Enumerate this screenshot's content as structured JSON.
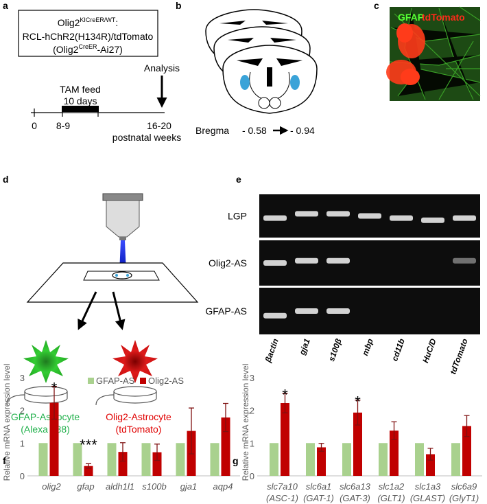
{
  "panels": {
    "a": {
      "label": "a",
      "genotype": {
        "base": "Olig2",
        "sup": "KICreER/WT",
        "tail": ":"
      },
      "line2": "RCL-hChR2(H134R)/tdTomato",
      "line3": {
        "base": "(Olig2",
        "sup": "CreER",
        "tail": "-Ai27)"
      },
      "tam": "TAM feed",
      "days": "10 days",
      "analysis": "Analysis",
      "ticks": [
        "0",
        "8-9",
        "16-20"
      ],
      "unit": "postnatal weeks"
    },
    "b": {
      "label": "b",
      "bregma": "Bregma",
      "from": "- 0.58",
      "to": "- 0.94"
    },
    "c": {
      "label": "c",
      "stain1": "GFAP",
      "stain2": "tdTomato"
    },
    "d": {
      "label": "d",
      "cells": [
        {
          "name": "GFAP-Astrocyte",
          "sub": "(Alexa 488)"
        },
        {
          "name": "Olig2-Astrocyte",
          "sub": "(tdTomato)"
        }
      ]
    },
    "e": {
      "label": "e",
      "rows": [
        "LGP",
        "Olig2-AS",
        "GFAP-AS"
      ],
      "lanes": [
        "βactin",
        "gja1",
        "s100β",
        "mbp",
        "cd11b",
        "HuC/D",
        "tdTomato"
      ]
    }
  },
  "chart_data": [
    {
      "type": "bar",
      "label": "f",
      "y_label": "Relative mRNA expression level",
      "categories": [
        [
          "olig2"
        ],
        [
          "gfap"
        ],
        [
          "aldh1l1"
        ],
        [
          "s100b"
        ],
        [
          "gja1"
        ],
        [
          "aqp4"
        ]
      ],
      "series": [
        {
          "name": "GFAP-AS",
          "color": "#a9d18e",
          "values": [
            1,
            1,
            1,
            1,
            1,
            1
          ]
        },
        {
          "name": "Olig2-AS",
          "color": "#c00000",
          "values": [
            2.23,
            0.3,
            0.73,
            0.72,
            1.37,
            1.78
          ],
          "errors": [
            0.5,
            0.07,
            0.28,
            0.25,
            0.7,
            0.43
          ]
        }
      ],
      "annotations": [
        {
          "category": "olig2",
          "text": "*"
        },
        {
          "category": "gfap",
          "text": "***"
        }
      ],
      "ylim": [
        0,
        3.1
      ],
      "yticks": [
        0,
        1,
        2,
        3
      ],
      "legend": "top"
    },
    {
      "type": "bar",
      "label": "g",
      "y_label": "Relative mRNA expression level",
      "categories": [
        [
          "slc7a10",
          "(ASC-1)"
        ],
        [
          "slc6a1",
          "(GAT-1)"
        ],
        [
          "slc6a13",
          "(GAT-3)"
        ],
        [
          "slc1a2",
          "(GLT1)"
        ],
        [
          "slc1a3",
          "(GLAST)"
        ],
        [
          "slc6a9",
          "(GlyT1)"
        ]
      ],
      "series": [
        {
          "name": "GFAP-AS",
          "color": "#a9d18e",
          "values": [
            1,
            1,
            1,
            1,
            1,
            1
          ]
        },
        {
          "name": "Olig2-AS",
          "color": "#c00000",
          "values": [
            2.22,
            0.87,
            1.93,
            1.38,
            0.66,
            1.52
          ],
          "errors": [
            0.3,
            0.12,
            0.38,
            0.27,
            0.18,
            0.32
          ]
        }
      ],
      "annotations": [
        {
          "category": "slc7a10",
          "text": "*"
        },
        {
          "category": "slc6a13",
          "text": "*"
        }
      ],
      "ylim": [
        0,
        3.1
      ],
      "yticks": [
        0,
        1,
        2,
        3
      ],
      "legend": "none"
    }
  ]
}
